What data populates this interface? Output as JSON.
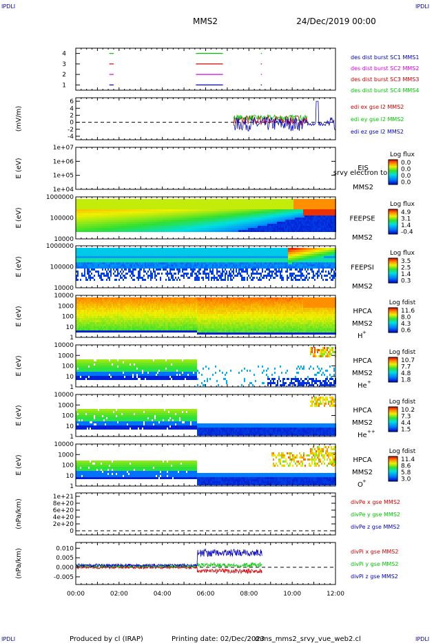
{
  "header": {
    "corner_left": "IPDLI",
    "corner_right": "IPDLI",
    "title": "MMS2",
    "date": "24/Dec/2019 00:00"
  },
  "footer": {
    "corner_left": "IPDLI",
    "corner_right": "IPDLI",
    "produced": "Produced by cl (IRAP)",
    "printing": "Printing date: 02/Dec/2023",
    "file": "mms_mms2_srvy_vue_web2.cl"
  },
  "colors": {
    "blue": "#0000c8",
    "red": "#d40000",
    "magenta": "#e000e0",
    "green": "#00c800"
  },
  "chart_data": [
    {
      "type": "line",
      "title": "",
      "ylim": [
        0.5,
        4.5
      ],
      "y_ticks": [
        "1",
        "2",
        "3",
        "4"
      ],
      "legend": [
        "des dist burst SC1 MMS1",
        "des dist burst SC2 MMS2",
        "des dist burst SC3 MMS3",
        "des dist burst SC4 MMS4"
      ],
      "series": [
        {
          "name": "des dist burst SC1 MMS1",
          "level": 1,
          "color": "#0000c8",
          "intervals_h": [
            [
              1.55,
              1.75
            ],
            [
              5.55,
              6.8
            ],
            [
              8.55,
              8.6
            ]
          ]
        },
        {
          "name": "des dist burst SC2 MMS2",
          "level": 2,
          "color": "#e000e0",
          "intervals_h": [
            [
              1.55,
              1.75
            ],
            [
              5.55,
              6.8
            ],
            [
              8.55,
              8.6
            ]
          ]
        },
        {
          "name": "des dist burst SC3 MMS3",
          "level": 3,
          "color": "#d40000",
          "intervals_h": [
            [
              1.55,
              1.75
            ],
            [
              5.55,
              6.8
            ],
            [
              8.55,
              8.6
            ]
          ]
        },
        {
          "name": "des dist burst SC4 MMS4",
          "level": 4,
          "color": "#00c800",
          "intervals_h": [
            [
              1.55,
              1.75
            ],
            [
              5.55,
              6.8
            ],
            [
              8.55,
              8.6
            ]
          ]
        }
      ]
    },
    {
      "type": "line",
      "ylabel": "(mV/m)",
      "ylim": [
        -5,
        7
      ],
      "y_ticks": [
        "6",
        "4",
        "2",
        "0",
        "-2",
        "-4"
      ],
      "legend": [
        "edi ex gse l2 MMS2",
        "edi ey gse l2 MMS2",
        "edi ez gse l2 MMS2"
      ],
      "series": [
        {
          "name": "edi ex gse l2 MMS2",
          "color": "#d40000",
          "x_range_h": [
            7.3,
            10.7
          ],
          "y_center": 0.6,
          "amplitude": 1.5
        },
        {
          "name": "edi ey gse l2 MMS2",
          "color": "#00c800",
          "x_range_h": [
            7.3,
            10.7
          ],
          "y_center": 1.3,
          "amplitude": 0.8
        },
        {
          "name": "edi ez gse l2 MMS2",
          "color": "#0000c8",
          "x_range_h": [
            7.3,
            12.0
          ],
          "y_center": -0.5,
          "amplitude": 2.0
        }
      ]
    },
    {
      "type": "heatmap",
      "ylabel": "E (eV)",
      "y_ticks": [
        "1e+07",
        "1e+06",
        "1e+05",
        "1e+04"
      ],
      "log_scale": true,
      "instrument": "EIS",
      "instrument_sub": "srvy electron to",
      "spacecraft": "MMS2",
      "colorbar": {
        "title": "Log flux",
        "labels": [
          "0.0",
          "0.0",
          "0.0",
          "0.0"
        ]
      },
      "empty": true
    },
    {
      "type": "heatmap",
      "ylabel": "E (eV)",
      "y_ticks": [
        "1000000",
        "100000",
        "10000"
      ],
      "log_scale": true,
      "instrument": "FEEPSE",
      "spacecraft": "MMS2",
      "colorbar": {
        "title": "Log flux",
        "labels": [
          "4.9",
          "3.1",
          "1.4",
          "-0.4"
        ]
      }
    },
    {
      "type": "heatmap",
      "ylabel": "E (eV)",
      "y_ticks": [
        "1000000",
        "100000",
        "10000"
      ],
      "log_scale": true,
      "instrument": "FEEPSI",
      "spacecraft": "MMS2",
      "colorbar": {
        "title": "Log flux",
        "labels": [
          "3.5",
          "2.5",
          "1.4",
          "0.3"
        ]
      }
    },
    {
      "type": "heatmap",
      "ylabel": "E (eV)",
      "y_ticks": [
        "10000",
        "1000",
        "100",
        "10",
        "1"
      ],
      "log_scale": true,
      "instrument": "HPCA",
      "spacecraft": "MMS2",
      "species": "H",
      "species_sup": "+",
      "colorbar": {
        "title": "Log fdist",
        "labels": [
          "11.6",
          "8.0",
          "4.3",
          "0.6"
        ]
      }
    },
    {
      "type": "heatmap",
      "ylabel": "E (eV)",
      "y_ticks": [
        "10000",
        "1000",
        "100",
        "10",
        "1"
      ],
      "log_scale": true,
      "instrument": "HPCA",
      "spacecraft": "MMS2",
      "species": "He",
      "species_sup": "+",
      "colorbar": {
        "title": "Log fdist",
        "labels": [
          "10.7",
          "7.7",
          "4.8",
          "1.8"
        ]
      }
    },
    {
      "type": "heatmap",
      "ylabel": "E (eV)",
      "y_ticks": [
        "10000",
        "1000",
        "100",
        "10",
        "1"
      ],
      "log_scale": true,
      "instrument": "HPCA",
      "spacecraft": "MMS2",
      "species": "He",
      "species_sup": "++",
      "colorbar": {
        "title": "Log fdist",
        "labels": [
          "10.2",
          "7.3",
          "4.4",
          "1.5"
        ]
      }
    },
    {
      "type": "heatmap",
      "ylabel": "E (eV)",
      "y_ticks": [
        "10000",
        "1000",
        "100",
        "10",
        "1"
      ],
      "log_scale": true,
      "instrument": "HPCA",
      "spacecraft": "MMS2",
      "species": "O",
      "species_sup": "+",
      "colorbar": {
        "title": "Log fdist",
        "labels": [
          "11.4",
          "8.6",
          "5.8",
          "3.0"
        ]
      }
    },
    {
      "type": "line",
      "ylabel": "(nPa/km)",
      "ylim": [
        0,
        1e+21
      ],
      "y_ticks": [
        "1e+21",
        "8e+20",
        "6e+20",
        "4e+20",
        "2e+20",
        "0"
      ],
      "legend": [
        "divPe x gse MMS2",
        "divPe y gse MMS2",
        "divPe z gse MMS2"
      ],
      "empty": true
    },
    {
      "type": "line",
      "ylabel": "(nPa/km)",
      "ylim": [
        -0.009,
        0.013
      ],
      "y_ticks": [
        "0.010",
        "0.005",
        "0.000",
        "-0.005"
      ],
      "legend": [
        "divPi x gse MMS2",
        "divPi y gse MMS2",
        "divPi z gse MMS2"
      ],
      "series": [
        {
          "name": "divPi x gse MMS2",
          "color": "#d40000",
          "pre": 0.0,
          "post": -0.002
        },
        {
          "name": "divPi y gse MMS2",
          "color": "#00c800",
          "pre": 0.0007,
          "post": 0.0012
        },
        {
          "name": "divPi z gse MMS2",
          "color": "#0000c8",
          "pre": 0.001,
          "post": 0.0075
        }
      ],
      "x_ticks": [
        "00:00",
        "02:00",
        "04:00",
        "06:00",
        "08:00",
        "10:00",
        "12:00"
      ],
      "xlim_h": [
        0,
        12
      ]
    }
  ]
}
